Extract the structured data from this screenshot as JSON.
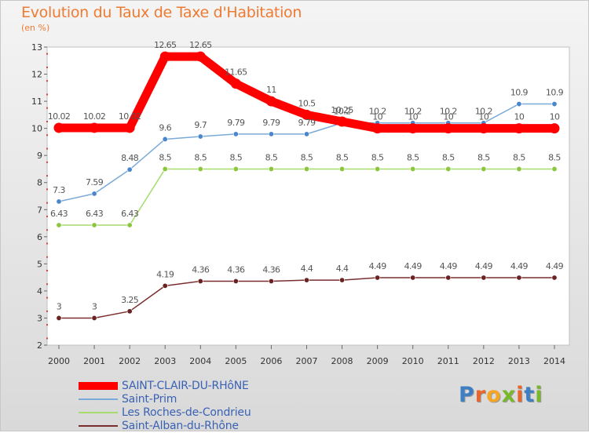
{
  "title": "Evolution du Taux de Taxe d'Habitation",
  "subtitle": "(en %)",
  "brand": {
    "letters": [
      "P",
      "r",
      "o",
      "x",
      "i",
      "t",
      "i"
    ],
    "colors": [
      "#3e7fc4",
      "#e8662a",
      "#f5a623",
      "#79b82b",
      "#e8662a",
      "#3e7fc4",
      "#79b82b"
    ]
  },
  "chart_data": {
    "type": "line",
    "title": "Evolution du Taux de Taxe d'Habitation",
    "ylabel": "(en %)",
    "xlabel": "",
    "x": [
      2000,
      2001,
      2002,
      2003,
      2004,
      2005,
      2006,
      2007,
      2008,
      2009,
      2010,
      2011,
      2012,
      2013,
      2014
    ],
    "ylim": [
      2,
      13
    ],
    "yticks": [
      2,
      3,
      4,
      5,
      6,
      7,
      8,
      9,
      10,
      11,
      12,
      13
    ],
    "grid": false,
    "legend": "bottom-left",
    "series": [
      {
        "name": "SAINT-CLAIR-DU-RHôNE",
        "color": "#ff0000",
        "marker": "#ff0000",
        "weight": "thick",
        "values": [
          10.02,
          10.02,
          10.02,
          12.65,
          12.65,
          11.65,
          11,
          10.5,
          10.25,
          10,
          10,
          10,
          10,
          10,
          10
        ],
        "labels": [
          "10.02",
          "10.02",
          "10.02",
          "12.65",
          "12.65",
          "11.65",
          "11",
          "10.5",
          "10.25",
          "10",
          "10",
          "10",
          "10",
          "10",
          "10"
        ]
      },
      {
        "name": "Saint-Prim",
        "color": "#7aaad9",
        "marker": "#4a86cc",
        "weight": "thin",
        "values": [
          7.3,
          7.59,
          8.48,
          9.6,
          9.7,
          9.79,
          9.79,
          9.79,
          10.2,
          10.2,
          10.2,
          10.2,
          10.2,
          10.9,
          10.9
        ],
        "labels": [
          "7.3",
          "7.59",
          "8.48",
          "9.6",
          "9.7",
          "9.79",
          "9.79",
          "9.79",
          "10.2",
          "10.2",
          "10.2",
          "10.2",
          "10.2",
          "10.9",
          "10.9"
        ]
      },
      {
        "name": "Les Roches-de-Condrieu",
        "color": "#a6dc6e",
        "marker": "#8cc63f",
        "weight": "thin",
        "values": [
          6.43,
          6.43,
          6.43,
          8.5,
          8.5,
          8.5,
          8.5,
          8.5,
          8.5,
          8.5,
          8.5,
          8.5,
          8.5,
          8.5,
          8.5
        ],
        "labels": [
          "6.43",
          "6.43",
          "6.43",
          "8.5",
          "8.5",
          "8.5",
          "8.5",
          "8.5",
          "8.5",
          "8.5",
          "8.5",
          "8.5",
          "8.5",
          "8.5",
          "8.5"
        ]
      },
      {
        "name": "Saint-Alban-du-Rhône",
        "color": "#7a2e2e",
        "marker": "#6b2222",
        "weight": "thin",
        "values": [
          3,
          3,
          3.25,
          4.19,
          4.36,
          4.36,
          4.36,
          4.4,
          4.4,
          4.49,
          4.49,
          4.49,
          4.49,
          4.49,
          4.49
        ],
        "labels": [
          "3",
          "3",
          "3.25",
          "4.19",
          "4.36",
          "4.36",
          "4.36",
          "4.4",
          "4.4",
          "4.49",
          "4.49",
          "4.49",
          "4.49",
          "4.49",
          "4.49"
        ]
      }
    ]
  }
}
